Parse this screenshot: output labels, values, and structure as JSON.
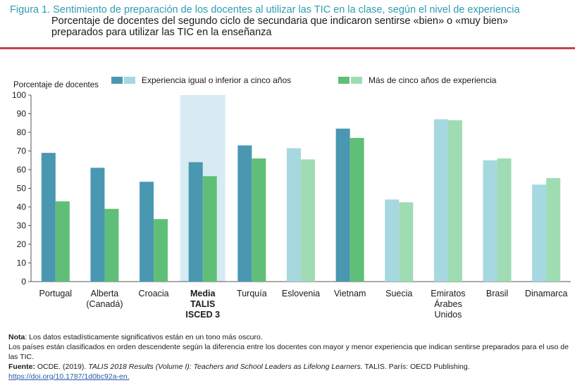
{
  "header": {
    "figure_title": "Figura 1. Sentimiento de preparación de los docentes al utilizar las TIC en la clase, según el nivel de experiencia",
    "subtitle": "Porcentaje de docentes del segundo ciclo de secundaria que indicaron sentirse «bien» o «muy bien» preparados para utilizar las TIC en la enseñanza"
  },
  "colors": {
    "title_color": "#2e9cb3",
    "divider": "#c4434f",
    "novice_dark": "#4a97b2",
    "novice_light": "#a6d8e0",
    "expert_dark": "#5fbf78",
    "expert_light": "#9fdcb3",
    "highlight_band": "#d7ebf3"
  },
  "chart_data": {
    "type": "bar",
    "ylabel": "Porcentaje de docentes",
    "ylim": [
      0,
      100
    ],
    "yticks": [
      "0",
      "10",
      "20",
      "30",
      "40",
      "50",
      "60",
      "70",
      "80",
      "90",
      "100"
    ],
    "grid": false,
    "legend_placement": "top",
    "categories": [
      [
        "Portugal"
      ],
      [
        "Alberta",
        "(Canadá)"
      ],
      [
        "Croacia"
      ],
      [
        "Media",
        "TALIS",
        "ISCED 3"
      ],
      [
        "Turquía"
      ],
      [
        "Eslovenia"
      ],
      [
        "Vietnam"
      ],
      [
        "Suecia"
      ],
      [
        "Emiratos",
        "Árabes",
        "Unidos"
      ],
      [
        "Brasil"
      ],
      [
        "Dinamarca"
      ]
    ],
    "highlight_category_index": 3,
    "significant": [
      true,
      true,
      true,
      true,
      true,
      false,
      true,
      false,
      false,
      false,
      false
    ],
    "series": [
      {
        "name": "Experiencia igual o inferior a cinco años",
        "values": [
          69,
          61,
          53.5,
          64,
          73,
          71.5,
          82,
          44,
          87,
          65,
          52
        ]
      },
      {
        "name": "Más de cinco años de experiencia",
        "values": [
          43,
          39,
          33.5,
          56.5,
          66,
          65.5,
          77,
          42.5,
          86.5,
          66,
          55.5
        ]
      }
    ]
  },
  "notes": {
    "note_label": "Nota",
    "note_text": ": Los datos estadísticamente significativos están en un tono más oscuro.",
    "order_text": "Los países están clasificados en orden descendente según la diferencia entre los docentes con mayor y menor experiencia que indican sentirse preparados para el uso de las TIC.",
    "source_label": "Fuente:",
    "source_text_before": " OCDE. (2019). ",
    "source_title": "TALIS 2018 Results (Volume I): Teachers and School Leaders as Lifelong Learners.",
    "source_text_after": " TALIS. París: OECD Publishing.",
    "link_text": "https://doi.org/10.1787/1d0bc92a-en."
  }
}
